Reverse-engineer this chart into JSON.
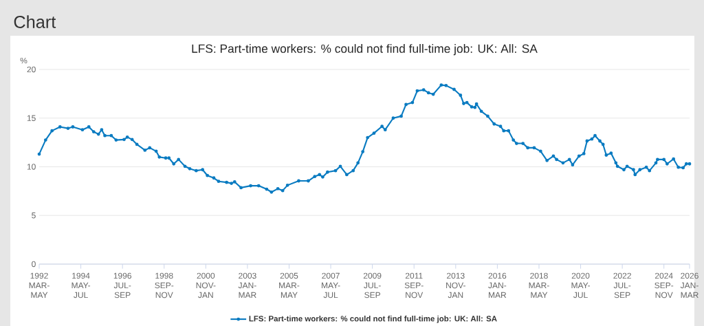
{
  "chart_data": {
    "type": "line",
    "title": "LFS: Part-time workers: % could not find full-time job: UK: All: SA",
    "ylabel": "%",
    "annotations": [
      "Chart"
    ],
    "x": [
      "1992-03",
      "1992-07",
      "1992-11",
      "1993-04",
      "1993-09",
      "1993-12",
      "1994-06",
      "1994-10",
      "1995-01",
      "1995-04",
      "1995-06",
      "1995-08",
      "1995-12",
      "1996-03",
      "1996-08",
      "1996-10",
      "1997-01",
      "1997-04",
      "1997-09",
      "1997-12",
      "1998-04",
      "1998-06",
      "1998-10",
      "1998-12",
      "1999-03",
      "1999-06",
      "1999-10",
      "2000-01",
      "2000-05",
      "2000-09",
      "2000-12",
      "2001-04",
      "2001-07",
      "2001-12",
      "2002-03",
      "2002-05",
      "2002-09",
      "2003-03",
      "2003-08",
      "2004-01",
      "2004-04",
      "2004-08",
      "2004-11",
      "2005-02",
      "2005-09",
      "2006-03",
      "2006-07",
      "2006-10",
      "2006-12",
      "2007-03",
      "2007-08",
      "2007-11",
      "2008-03",
      "2008-07",
      "2008-10",
      "2009-01",
      "2009-04",
      "2009-08",
      "2010-01",
      "2010-03",
      "2010-08",
      "2011-01",
      "2011-04",
      "2011-08",
      "2011-11",
      "2012-03",
      "2012-06",
      "2012-09",
      "2013-02",
      "2013-05",
      "2013-10",
      "2014-02",
      "2014-04",
      "2014-06",
      "2014-09",
      "2014-11",
      "2014-12",
      "2015-03",
      "2015-07",
      "2015-11",
      "2016-03",
      "2016-05",
      "2016-08",
      "2016-11",
      "2017-01",
      "2017-05",
      "2017-08",
      "2017-12",
      "2018-04",
      "2018-08",
      "2018-12",
      "2019-02",
      "2019-06",
      "2019-10",
      "2019-12",
      "2020-04",
      "2020-07",
      "2020-09",
      "2020-12",
      "2021-02",
      "2021-05",
      "2021-07",
      "2021-09",
      "2021-12",
      "2022-03",
      "2022-04",
      "2022-08",
      "2022-10",
      "2023-02",
      "2023-03",
      "2023-06",
      "2023-10",
      "2023-12",
      "2024-04",
      "2024-05",
      "2024-09",
      "2024-11",
      "2025-03",
      "2025-06",
      "2025-09",
      "2025-11",
      "2026-01"
    ],
    "series": [
      {
        "name": "LFS: Part-time workers: % could not find full-time job: UK: All: SA",
        "color": "#0a7bc1",
        "values": [
          11.3,
          12.75,
          13.7,
          14.1,
          13.95,
          14.1,
          13.8,
          14.1,
          13.6,
          13.35,
          13.8,
          13.2,
          13.2,
          12.75,
          12.8,
          13.05,
          12.8,
          12.3,
          11.7,
          11.95,
          11.6,
          11.0,
          10.9,
          10.9,
          10.3,
          10.75,
          10.05,
          9.8,
          9.6,
          9.7,
          9.1,
          8.85,
          8.5,
          8.4,
          8.3,
          8.45,
          7.85,
          8.05,
          8.05,
          7.7,
          7.4,
          7.75,
          7.55,
          8.1,
          8.55,
          8.55,
          9.0,
          9.2,
          8.95,
          9.45,
          9.6,
          10.05,
          9.2,
          9.6,
          10.4,
          11.55,
          13.0,
          13.45,
          14.15,
          13.8,
          15.0,
          15.2,
          16.4,
          16.6,
          17.8,
          17.9,
          17.6,
          17.45,
          18.4,
          18.35,
          17.95,
          17.35,
          16.5,
          16.6,
          16.15,
          16.1,
          16.45,
          15.7,
          15.2,
          14.4,
          14.15,
          13.7,
          13.7,
          12.75,
          12.4,
          12.4,
          11.95,
          11.95,
          11.6,
          10.65,
          11.1,
          10.75,
          10.4,
          10.75,
          10.2,
          11.1,
          11.35,
          12.65,
          12.85,
          13.2,
          12.65,
          12.3,
          11.2,
          11.4,
          10.4,
          10.05,
          9.7,
          10.05,
          9.7,
          9.2,
          9.7,
          9.95,
          9.6,
          10.4,
          10.75,
          10.75,
          10.3,
          10.8,
          9.95,
          9.9,
          10.3,
          10.3
        ]
      }
    ],
    "xlim": [
      "1992-03",
      "2026-01"
    ],
    "xticks": [
      {
        "value": "1992-03",
        "label": "1992 MAR-MAY"
      },
      {
        "value": "1994-05",
        "label": "1994 MAY-JUL"
      },
      {
        "value": "1996-07",
        "label": "1996 JUL-SEP"
      },
      {
        "value": "1998-09",
        "label": "1998 SEP-NOV"
      },
      {
        "value": "2000-11",
        "label": "2000 NOV-JAN"
      },
      {
        "value": "2003-01",
        "label": "2003 JAN-MAR"
      },
      {
        "value": "2005-03",
        "label": "2005 MAR-MAY"
      },
      {
        "value": "2007-05",
        "label": "2007 MAY-JUL"
      },
      {
        "value": "2009-07",
        "label": "2009 JUL-SEP"
      },
      {
        "value": "2011-09",
        "label": "2011 SEP-NOV"
      },
      {
        "value": "2013-11",
        "label": "2013 NOV-JAN"
      },
      {
        "value": "2016-01",
        "label": "2016 JAN-MAR"
      },
      {
        "value": "2018-03",
        "label": "2018 MAR-MAY"
      },
      {
        "value": "2020-05",
        "label": "2020 MAY-JUL"
      },
      {
        "value": "2022-07",
        "label": "2022 JUL-SEP"
      },
      {
        "value": "2024-09",
        "label": "2024 SEP-NOV"
      },
      {
        "value": "2026-01",
        "label": "2026 JAN-MAR"
      }
    ],
    "ylim": [
      0,
      20
    ],
    "yticks": [
      0,
      5,
      10,
      15,
      20
    ],
    "grid": "y",
    "legend": "bottom",
    "marker": "circle",
    "line_style": "solid"
  }
}
